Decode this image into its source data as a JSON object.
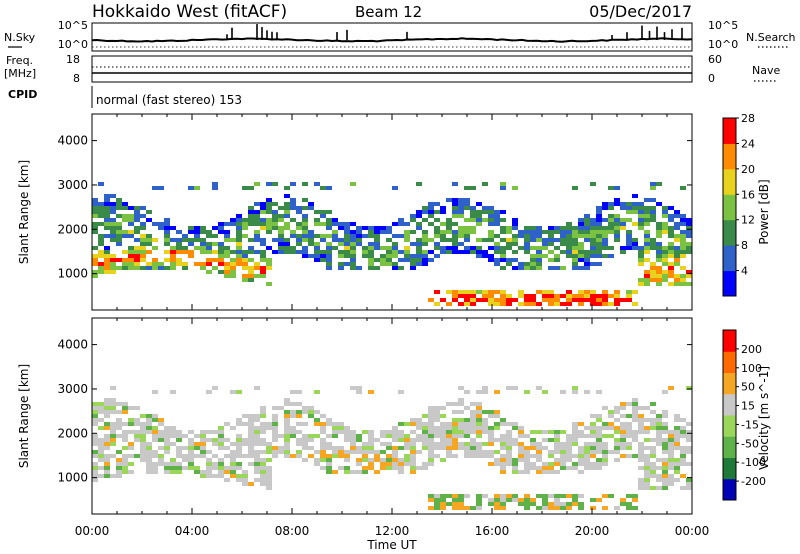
{
  "header": {
    "station": "Hokkaido West (fitACF)",
    "beam": "Beam 12",
    "date": "05/Dec/2017"
  },
  "status_panels": {
    "nsky": {
      "label": "N.Sky",
      "ticks": [
        "10^5",
        "10^0"
      ]
    },
    "nsearch": {
      "label": "N.Search",
      "ticks": [
        "10^5",
        "10^0"
      ]
    },
    "freq": {
      "label_line1": "Freq.",
      "label_line2": "[MHz]",
      "ticks": [
        "18",
        "8"
      ]
    },
    "nave": {
      "label": "Nave",
      "ticks": [
        "60",
        "0"
      ]
    },
    "cpid": {
      "label": "CPID",
      "program": "normal (fast stereo) 153"
    }
  },
  "chart_data": [
    {
      "type": "heatmap",
      "quantity": "power",
      "ylabel": "Slant Range [km]",
      "xlabel": "",
      "ylim": [
        180,
        4600
      ],
      "xlim_hours": [
        0,
        24
      ],
      "yticks": [
        1000,
        2000,
        3000,
        4000
      ],
      "colorbar": {
        "label": "Power [dB]",
        "tick_labels": [
          "4",
          "8",
          "12",
          "16",
          "20",
          "24",
          "28"
        ],
        "colors": [
          "#0000ff",
          "#2f62c8",
          "#3a8a4a",
          "#7cc242",
          "#e8d21d",
          "#ff8c00",
          "#ff0000"
        ]
      },
      "description_bands": [
        {
          "from_h": 0,
          "to_h": 6.5,
          "range_km": [
            900,
            1600
          ],
          "level": "high"
        },
        {
          "from_h": 0,
          "to_h": 24,
          "range_km": [
            1600,
            3000
          ],
          "level": "medium"
        },
        {
          "from_h": 13.5,
          "to_h": 21.5,
          "range_km": [
            350,
            700
          ],
          "level": "high"
        },
        {
          "from_h": 22,
          "to_h": 24,
          "range_km": [
            800,
            1500
          ],
          "level": "high"
        }
      ]
    },
    {
      "type": "heatmap",
      "quantity": "velocity",
      "ylabel": "Slant Range [km]",
      "xlabel": "Time UT",
      "ylim": [
        180,
        4600
      ],
      "xlim_hours": [
        0,
        24
      ],
      "yticks": [
        1000,
        2000,
        3000,
        4000
      ],
      "colorbar": {
        "label": "Velocity [m s^-1]",
        "tick_labels": [
          "200",
          "100",
          "50",
          "15",
          "-15",
          "-50",
          "-100",
          "-200"
        ],
        "colors": [
          "#0000b4",
          "#1f7a3a",
          "#5fb24a",
          "#9ad65a",
          "#c8c8c8",
          "#f5a623",
          "#ff6a00",
          "#ff0000"
        ]
      }
    }
  ],
  "time_axis": {
    "label": "Time UT",
    "ticks": [
      "00:00",
      "04:00",
      "08:00",
      "12:00",
      "16:00",
      "20:00",
      "00:00"
    ]
  },
  "colors": {
    "frame": "#000000",
    "background": "#ffffff"
  }
}
